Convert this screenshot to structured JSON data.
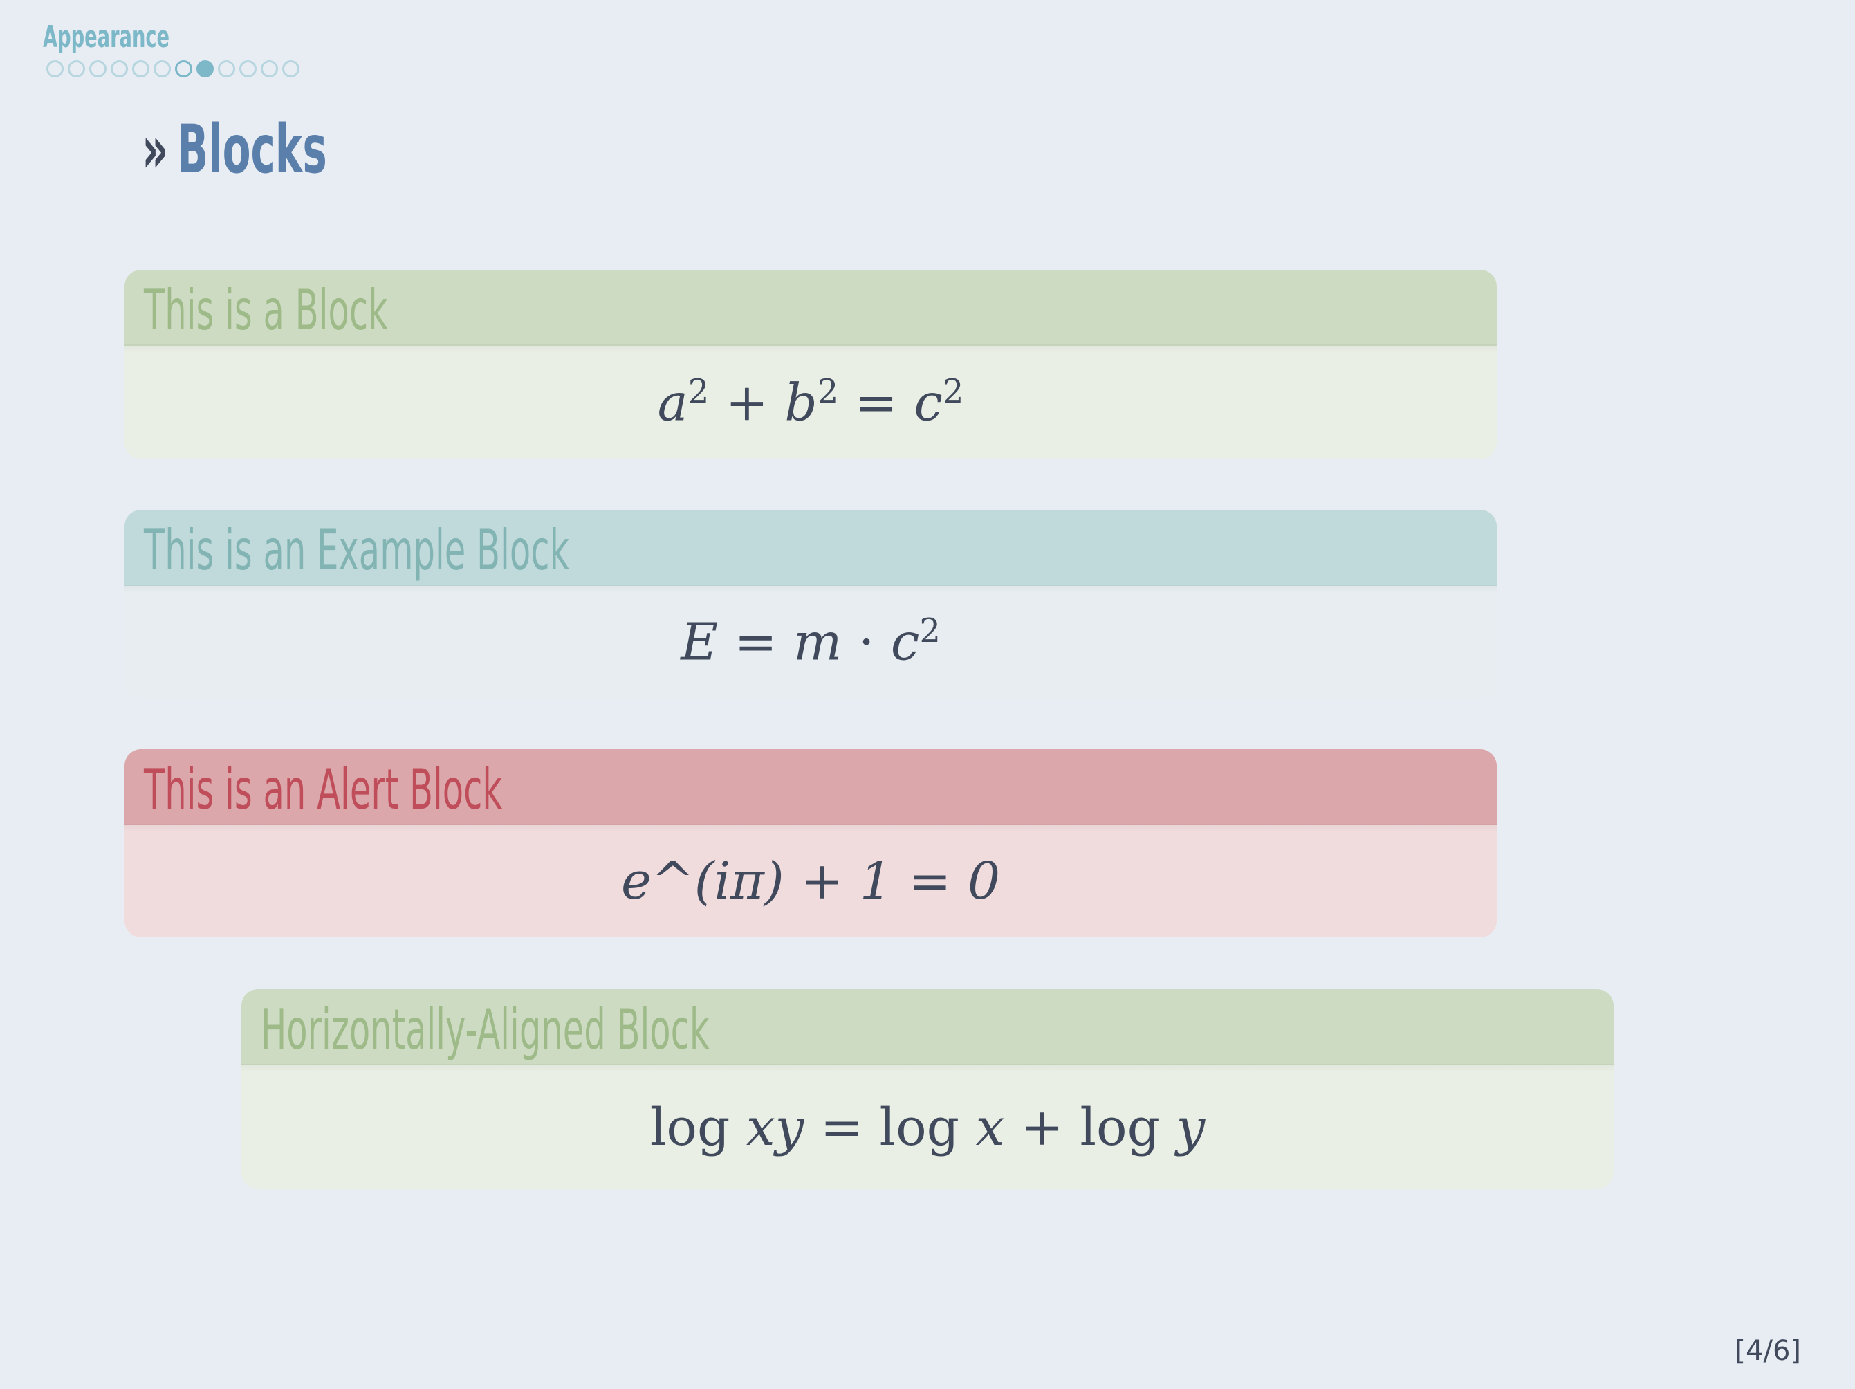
{
  "header": {
    "section": "Appearance",
    "nav_dots": {
      "count": 12,
      "current_outline_index": 6,
      "active_index": 7
    }
  },
  "slide": {
    "chevron": "»",
    "title": "Blocks"
  },
  "blocks": [
    {
      "title": "This is a Block",
      "math": "a² + b² = c²"
    },
    {
      "title": "This is an Example Block",
      "math": "E = m · c²"
    },
    {
      "title": "This is an Alert Block",
      "math": "e^(iπ) + 1 = 0"
    },
    {
      "title": "Horizontally-Aligned Block",
      "math": "log xy = log x + log y"
    }
  ],
  "footer": {
    "page_number": "[4/6]"
  },
  "colors": {
    "background": "#e8edf4",
    "title": "#5a7fab",
    "block_header": "#cddbc2",
    "example_header": "#c0d9da",
    "alert_header": "#dca7ab",
    "alert_title": "#bf4e5a"
  }
}
